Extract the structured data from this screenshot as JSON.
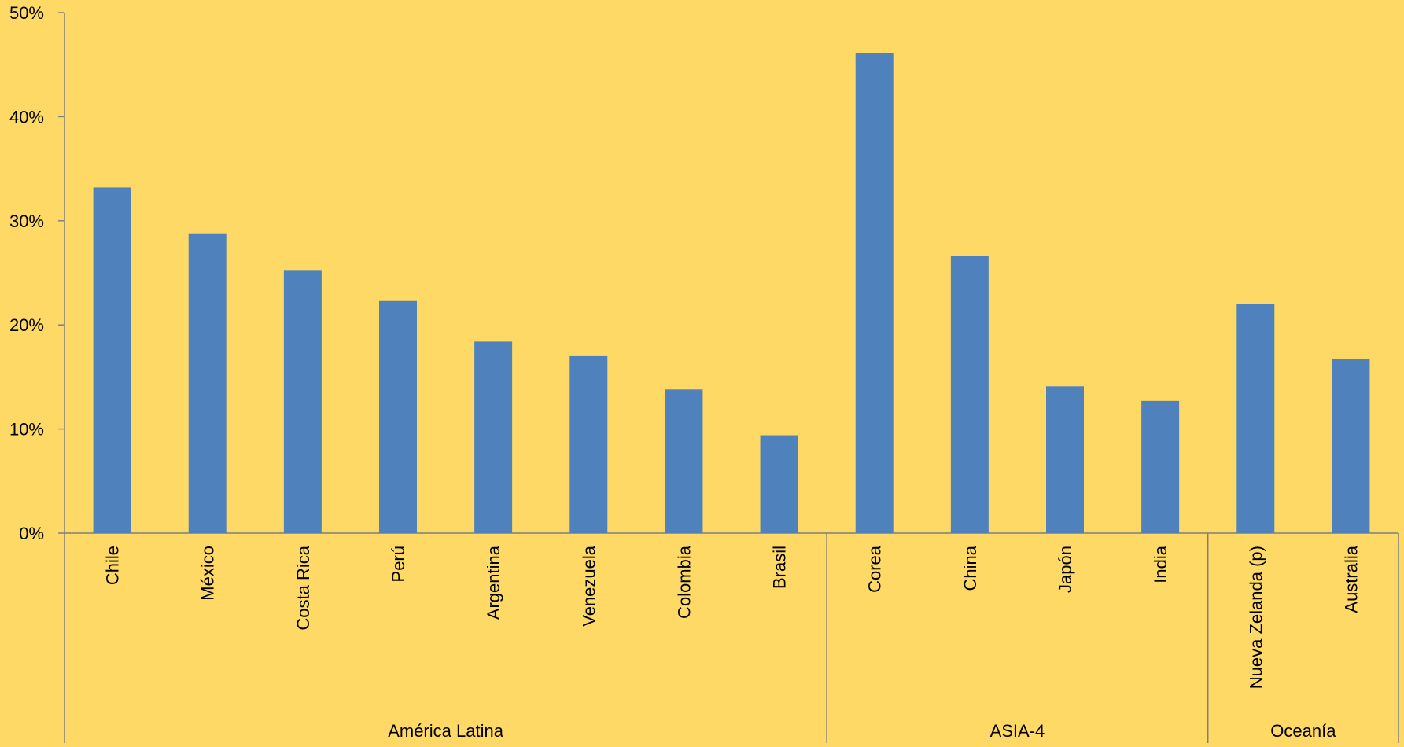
{
  "chart_data": {
    "type": "bar",
    "categories": [
      "Chile",
      "México",
      "Costa Rica",
      "Perú",
      "Argentina",
      "Venezuela",
      "Colombia",
      "Brasil",
      "Corea",
      "China",
      "Japón",
      "India",
      "Nueva Zelanda (p)",
      "Australia"
    ],
    "groups": [
      {
        "label": "América Latina",
        "count": 8
      },
      {
        "label": "ASIA-4",
        "count": 4
      },
      {
        "label": "Oceanía",
        "count": 2
      }
    ],
    "series": [
      {
        "values": [
          33.2,
          28.8,
          25.2,
          22.3,
          18.4,
          17.0,
          13.8,
          9.4,
          46.1,
          26.6,
          14.1,
          12.7,
          22.0,
          16.7
        ]
      }
    ],
    "title": "",
    "xlabel": "",
    "ylabel": "",
    "ylim": [
      0,
      50
    ],
    "yticks": [
      "0%",
      "10%",
      "20%",
      "30%",
      "40%",
      "50%"
    ],
    "grid": false,
    "legend": "none",
    "colors": {
      "background": "#FFD966",
      "bar": "#4F81BD",
      "axis": "#7F7F7F"
    }
  }
}
